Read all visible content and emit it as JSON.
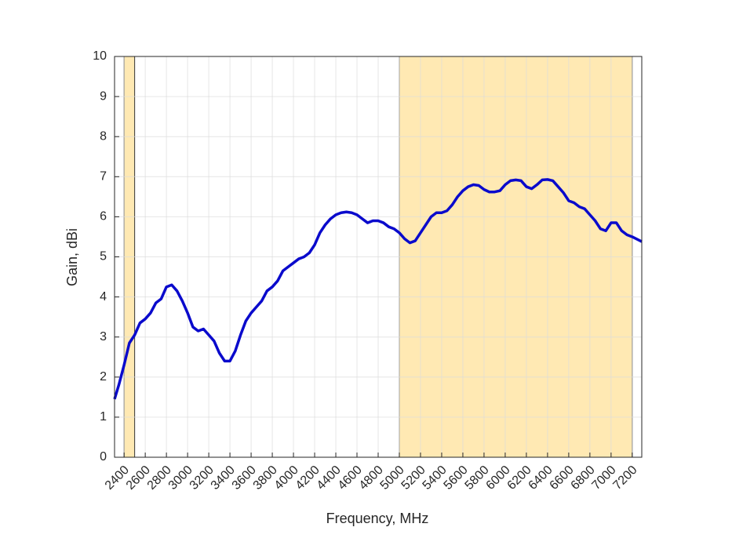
{
  "chart_data": {
    "type": "line",
    "xlabel": "Frequency, MHz",
    "ylabel": "Gain, dBi",
    "x": [
      2310,
      2350,
      2400,
      2450,
      2500,
      2550,
      2600,
      2650,
      2700,
      2750,
      2800,
      2850,
      2900,
      2950,
      3000,
      3050,
      3100,
      3150,
      3200,
      3250,
      3300,
      3350,
      3400,
      3450,
      3500,
      3550,
      3600,
      3650,
      3700,
      3750,
      3800,
      3850,
      3900,
      3950,
      4000,
      4050,
      4100,
      4150,
      4200,
      4250,
      4300,
      4350,
      4400,
      4450,
      4500,
      4550,
      4600,
      4650,
      4700,
      4750,
      4800,
      4850,
      4900,
      4950,
      5000,
      5050,
      5100,
      5150,
      5200,
      5250,
      5300,
      5350,
      5400,
      5450,
      5500,
      5550,
      5600,
      5650,
      5700,
      5750,
      5800,
      5850,
      5900,
      5950,
      6000,
      6050,
      6100,
      6150,
      6200,
      6250,
      6300,
      6350,
      6400,
      6450,
      6500,
      6550,
      6600,
      6650,
      6700,
      6750,
      6800,
      6850,
      6900,
      6950,
      7000,
      7050,
      7100,
      7150,
      7200,
      7290
    ],
    "series": [
      {
        "color": "#0a0acc",
        "values": [
          1.45,
          1.8,
          2.3,
          2.85,
          3.05,
          3.35,
          3.45,
          3.6,
          3.85,
          3.95,
          4.25,
          4.3,
          4.15,
          3.9,
          3.6,
          3.25,
          3.15,
          3.2,
          3.05,
          2.9,
          2.6,
          2.4,
          2.4,
          2.65,
          3.05,
          3.4,
          3.6,
          3.75,
          3.9,
          4.15,
          4.25,
          4.4,
          4.65,
          4.75,
          4.85,
          4.95,
          5.0,
          5.1,
          5.3,
          5.6,
          5.8,
          5.95,
          6.05,
          6.1,
          6.12,
          6.1,
          6.05,
          5.95,
          5.85,
          5.9,
          5.9,
          5.85,
          5.75,
          5.7,
          5.6,
          5.45,
          5.35,
          5.4,
          5.6,
          5.8,
          6.0,
          6.1,
          6.1,
          6.15,
          6.3,
          6.5,
          6.65,
          6.75,
          6.8,
          6.78,
          6.68,
          6.62,
          6.62,
          6.65,
          6.8,
          6.9,
          6.92,
          6.9,
          6.75,
          6.7,
          6.8,
          6.92,
          6.93,
          6.9,
          6.75,
          6.6,
          6.4,
          6.35,
          6.25,
          6.2,
          6.05,
          5.9,
          5.7,
          5.65,
          5.85,
          5.85,
          5.65,
          5.55,
          5.5,
          5.38
        ]
      }
    ],
    "shaded_regions": [
      [
        2400,
        2500
      ],
      [
        5000,
        7200
      ]
    ],
    "shade_color": "#ffe9b3",
    "xlim": [
      2310,
      7290
    ],
    "ylim": [
      0,
      10
    ],
    "xticks": [
      2400,
      2600,
      2800,
      3000,
      3200,
      3400,
      3600,
      3800,
      4000,
      4200,
      4400,
      4600,
      4800,
      5000,
      5200,
      5400,
      5600,
      5800,
      6000,
      6200,
      6400,
      6600,
      6800,
      7000,
      7200
    ],
    "yticks": [
      0,
      1,
      2,
      3,
      4,
      5,
      6,
      7,
      8,
      9,
      10
    ],
    "grid": true
  }
}
